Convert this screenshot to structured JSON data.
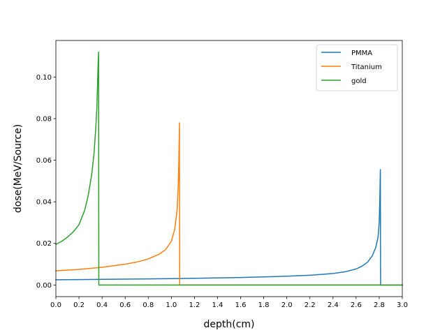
{
  "chart_data": {
    "type": "line",
    "xlabel": "depth(cm)",
    "ylabel": "dose(MeV/Source)",
    "xlim": [
      0,
      3.0
    ],
    "ylim": [
      -0.0056,
      0.1176
    ],
    "xticks": [
      "0.0",
      "0.2",
      "0.4",
      "0.6",
      "0.8",
      "1.0",
      "1.2",
      "1.4",
      "1.6",
      "1.8",
      "2.0",
      "2.2",
      "2.4",
      "2.6",
      "2.8",
      "3.0"
    ],
    "yticks": [
      "0.00",
      "0.02",
      "0.04",
      "0.06",
      "0.08",
      "0.10"
    ],
    "grid": false,
    "legend_position": "top-right",
    "series": [
      {
        "name": "PMMA",
        "color": "#1f77b4",
        "x": [
          0,
          0.4,
          0.8,
          1.2,
          1.6,
          2.0,
          2.2,
          2.4,
          2.5,
          2.6,
          2.65,
          2.7,
          2.74,
          2.77,
          2.79,
          2.8,
          2.805,
          2.81,
          2.812,
          2.815,
          3.0
        ],
        "y": [
          0.0025,
          0.0027,
          0.0029,
          0.0032,
          0.0036,
          0.0042,
          0.0047,
          0.0055,
          0.0063,
          0.0077,
          0.009,
          0.011,
          0.014,
          0.018,
          0.023,
          0.03,
          0.04,
          0.0555,
          0.0,
          0.0,
          0.0
        ]
      },
      {
        "name": "Titanium",
        "color": "#ff7f0e",
        "x": [
          0,
          0.2,
          0.4,
          0.6,
          0.7,
          0.8,
          0.9,
          0.95,
          1.0,
          1.03,
          1.05,
          1.06,
          1.065,
          1.07,
          1.072,
          1.075,
          3.0
        ],
        "y": [
          0.0068,
          0.0075,
          0.0085,
          0.01,
          0.011,
          0.0125,
          0.015,
          0.017,
          0.021,
          0.027,
          0.036,
          0.048,
          0.06,
          0.078,
          0.0,
          0.0,
          0.0
        ]
      },
      {
        "name": "gold",
        "color": "#2ca02c",
        "x": [
          0,
          0.05,
          0.1,
          0.15,
          0.2,
          0.25,
          0.28,
          0.31,
          0.33,
          0.345,
          0.355,
          0.36,
          0.365,
          0.37,
          0.372,
          0.38,
          3.0
        ],
        "y": [
          0.0195,
          0.021,
          0.023,
          0.0255,
          0.029,
          0.036,
          0.043,
          0.053,
          0.063,
          0.075,
          0.085,
          0.095,
          0.105,
          0.112,
          0.0,
          0.0,
          0.0
        ]
      }
    ]
  }
}
